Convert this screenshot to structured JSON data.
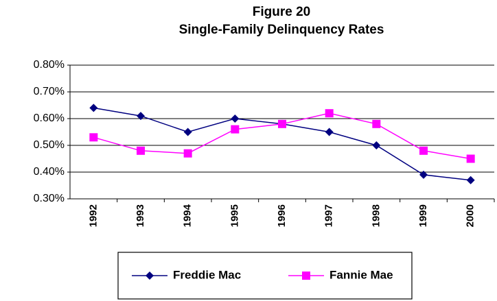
{
  "chart_data": {
    "type": "line",
    "title": "Figure 20",
    "subtitle": "Single-Family Delinquency Rates",
    "categories": [
      "1992",
      "1993",
      "1994",
      "1995",
      "1996",
      "1997",
      "1998",
      "1999",
      "2000"
    ],
    "series": [
      {
        "name": "Freddie Mac",
        "color": "#000080",
        "marker": "diamond",
        "values": [
          0.64,
          0.61,
          0.55,
          0.6,
          0.58,
          0.55,
          0.5,
          0.39,
          0.37
        ]
      },
      {
        "name": "Fannie Mae",
        "color": "#ff00ff",
        "marker": "square",
        "values": [
          0.53,
          0.48,
          0.47,
          0.56,
          0.58,
          0.62,
          0.58,
          0.48,
          0.45
        ]
      }
    ],
    "ylim": [
      0.3,
      0.8
    ],
    "yticks": [
      {
        "value": 0.3,
        "label": "0.30%"
      },
      {
        "value": 0.4,
        "label": "0.40%"
      },
      {
        "value": 0.5,
        "label": "0.50%"
      },
      {
        "value": 0.6,
        "label": "0.60%"
      },
      {
        "value": 0.7,
        "label": "0.70%"
      },
      {
        "value": 0.8,
        "label": "0.80%"
      }
    ],
    "grid": true,
    "legend": "bottom"
  }
}
